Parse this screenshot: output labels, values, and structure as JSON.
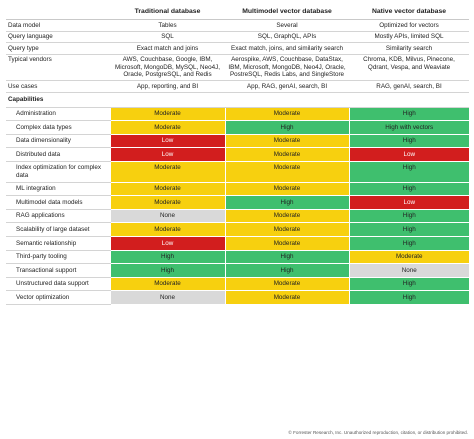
{
  "header": {
    "blank": "",
    "col1": "Traditional database",
    "col2": "Multimodel vector database",
    "col3": "Native vector database"
  },
  "info_rows": [
    {
      "label": "Data model",
      "values": [
        "Tables",
        "Several",
        "Optimized for vectors"
      ]
    },
    {
      "label": "Query language",
      "values": [
        "SQL",
        "SQL, GraphQL, APIs",
        "Mostly APIs, limited SQL"
      ]
    },
    {
      "label": "Query type",
      "values": [
        "Exact match and joins",
        "Exact match, joins, and similarity search",
        "Similarity search"
      ]
    },
    {
      "label": "Typical vendors",
      "values": [
        "AWS, Couchbase, Google, IBM, Microsoft, MongoDB, MySQL, Neo4J, Oracle, PostgreSQL, and Redis",
        "Aerospike, AWS, Couchbase, DataStax, IBM, Microsoft, MongoDB, Neo4J, Oracle, PostreSQL, Redis Labs, and SingleStore",
        "Chroma, KDB, Milvus, Pinecone, Qdrant, Vespa, and Weaviate"
      ]
    },
    {
      "label": "Use cases",
      "values": [
        "App, reporting, and BI",
        "App, RAG, genAI, search, BI",
        "RAG, genAI, search, BI"
      ]
    }
  ],
  "capabilities_title": "Capabilities",
  "level_colors": {
    "High": "#3fbf6e",
    "Moderate": "#f7d00f",
    "Low": "#d21e1e",
    "None": "#d9d9d9",
    "High with vectors": "#3fbf6e"
  },
  "capabilities": [
    {
      "label": "Administration",
      "values": [
        "Moderate",
        "Moderate",
        "High"
      ]
    },
    {
      "label": "Complex data types",
      "values": [
        "Moderate",
        "High",
        "High with vectors"
      ]
    },
    {
      "label": "Data dimensionality",
      "values": [
        "Low",
        "Moderate",
        "High"
      ]
    },
    {
      "label": "Distributed data",
      "values": [
        "Low",
        "Moderate",
        "Low"
      ]
    },
    {
      "label": "Index optimization for complex data",
      "values": [
        "Moderate",
        "Moderate",
        "High"
      ]
    },
    {
      "label": "ML integration",
      "values": [
        "Moderate",
        "Moderate",
        "High"
      ]
    },
    {
      "label": "Multimodel data models",
      "values": [
        "Moderate",
        "High",
        "Low"
      ]
    },
    {
      "label": "RAG applications",
      "values": [
        "None",
        "Moderate",
        "High"
      ]
    },
    {
      "label": "Scalability of large dataset",
      "values": [
        "Moderate",
        "Moderate",
        "High"
      ]
    },
    {
      "label": "Semantic relationship",
      "values": [
        "Low",
        "Moderate",
        "High"
      ]
    },
    {
      "label": "Third-party tooling",
      "values": [
        "High",
        "High",
        "Moderate"
      ]
    },
    {
      "label": "Transactional support",
      "values": [
        "High",
        "High",
        "None"
      ]
    },
    {
      "label": "Unstructured data support",
      "values": [
        "Moderate",
        "Moderate",
        "High"
      ]
    },
    {
      "label": "Vector optimization",
      "values": [
        "None",
        "Moderate",
        "High"
      ]
    }
  ],
  "footer": "© Forrester Research, Inc. Unauthorized reproduction, citation, or distribution prohibited."
}
